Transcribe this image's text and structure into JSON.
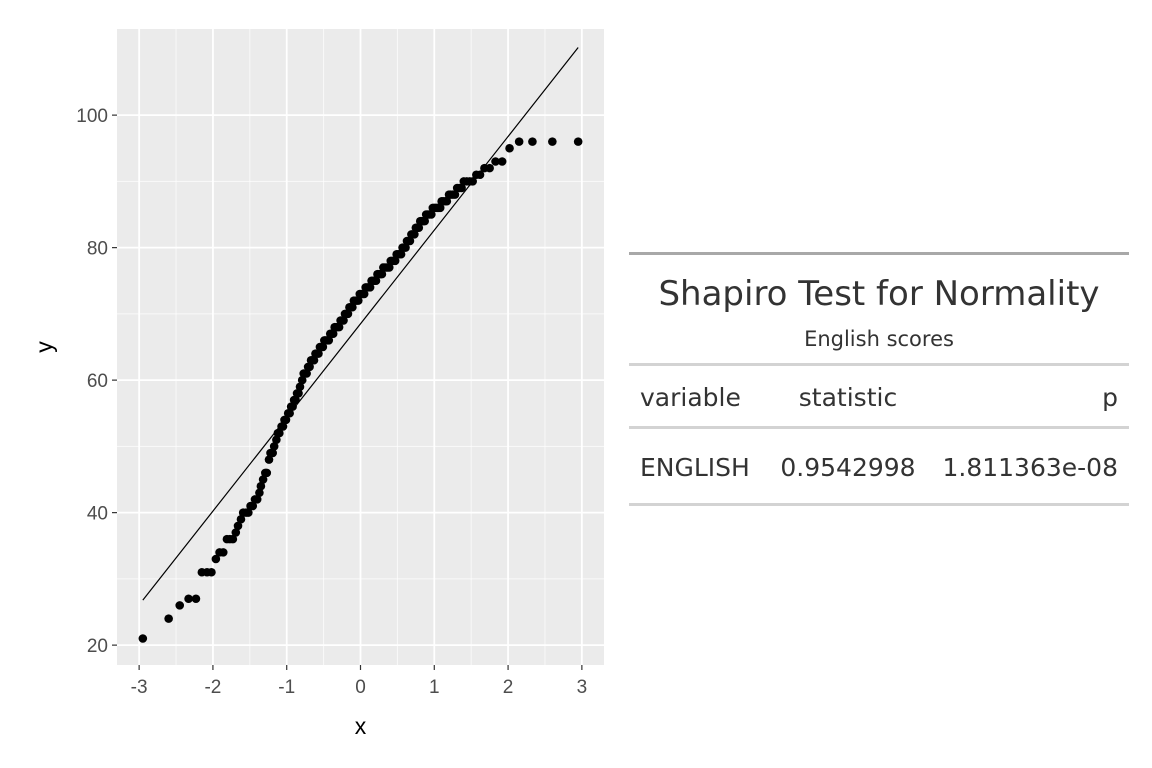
{
  "chart_data": [
    {
      "type": "scatter",
      "title": "",
      "xlabel": "x",
      "ylabel": "y",
      "xlim": [
        -3.3,
        3.3
      ],
      "ylim": [
        17,
        113
      ],
      "xticks": [
        -3,
        -2,
        -1,
        0,
        1,
        2,
        3
      ],
      "yticks": [
        20,
        40,
        60,
        80,
        100
      ],
      "grid": true,
      "background": "#ebebeb",
      "grid_color": "#ffffff",
      "point_color": "#000000",
      "reference_line": {
        "from": [
          -2.95,
          26.8
        ],
        "to": [
          2.95,
          110.2
        ],
        "color": "#000000"
      },
      "points": [
        [
          -2.95,
          21
        ],
        [
          -2.6,
          24
        ],
        [
          -2.45,
          26
        ],
        [
          -2.33,
          27
        ],
        [
          -2.23,
          27
        ],
        [
          -2.15,
          31
        ],
        [
          -2.08,
          31
        ],
        [
          -2.02,
          31
        ],
        [
          -1.96,
          33
        ],
        [
          -1.91,
          34
        ],
        [
          -1.86,
          34
        ],
        [
          -1.81,
          36
        ],
        [
          -1.77,
          36
        ],
        [
          -1.73,
          36
        ],
        [
          -1.69,
          37
        ],
        [
          -1.66,
          38
        ],
        [
          -1.62,
          39
        ],
        [
          -1.59,
          40
        ],
        [
          -1.55,
          40
        ],
        [
          -1.52,
          40
        ],
        [
          -1.49,
          41
        ],
        [
          -1.46,
          41
        ],
        [
          -1.43,
          42
        ],
        [
          -1.4,
          42
        ],
        [
          -1.37,
          43
        ],
        [
          -1.35,
          44
        ],
        [
          -1.32,
          45
        ],
        [
          -1.29,
          46
        ],
        [
          -1.27,
          46
        ],
        [
          -1.24,
          48
        ],
        [
          -1.22,
          49
        ],
        [
          -1.19,
          49
        ],
        [
          -1.17,
          50
        ],
        [
          -1.14,
          51
        ],
        [
          -1.12,
          52
        ],
        [
          -1.1,
          52
        ],
        [
          -1.07,
          53
        ],
        [
          -1.05,
          53
        ],
        [
          -1.03,
          54
        ],
        [
          -1.01,
          54
        ],
        [
          -0.98,
          55
        ],
        [
          -0.96,
          55
        ],
        [
          -0.94,
          56
        ],
        [
          -0.92,
          56
        ],
        [
          -0.9,
          57
        ],
        [
          -0.88,
          57
        ],
        [
          -0.86,
          58
        ],
        [
          -0.84,
          58
        ],
        [
          -0.82,
          59
        ],
        [
          -0.79,
          60
        ],
        [
          -0.77,
          61
        ],
        [
          -0.75,
          61
        ],
        [
          -0.73,
          61
        ],
        [
          -0.71,
          62
        ],
        [
          -0.69,
          62
        ],
        [
          -0.67,
          63
        ],
        [
          -0.65,
          63
        ],
        [
          -0.63,
          63
        ],
        [
          -0.61,
          64
        ],
        [
          -0.59,
          64
        ],
        [
          -0.57,
          64
        ],
        [
          -0.55,
          65
        ],
        [
          -0.53,
          65
        ],
        [
          -0.51,
          65
        ],
        [
          -0.49,
          66
        ],
        [
          -0.47,
          66
        ],
        [
          -0.45,
          66
        ],
        [
          -0.43,
          66
        ],
        [
          -0.41,
          67
        ],
        [
          -0.39,
          67
        ],
        [
          -0.37,
          67
        ],
        [
          -0.35,
          68
        ],
        [
          -0.33,
          68
        ],
        [
          -0.31,
          68
        ],
        [
          -0.29,
          68
        ],
        [
          -0.27,
          69
        ],
        [
          -0.25,
          69
        ],
        [
          -0.23,
          69
        ],
        [
          -0.21,
          70
        ],
        [
          -0.19,
          70
        ],
        [
          -0.17,
          70
        ],
        [
          -0.15,
          71
        ],
        [
          -0.13,
          71
        ],
        [
          -0.11,
          71
        ],
        [
          -0.09,
          72
        ],
        [
          -0.07,
          72
        ],
        [
          -0.05,
          72
        ],
        [
          -0.03,
          72
        ],
        [
          -0.01,
          73
        ],
        [
          0.01,
          73
        ],
        [
          0.03,
          73
        ],
        [
          0.05,
          73
        ],
        [
          0.07,
          74
        ],
        [
          0.09,
          74
        ],
        [
          0.11,
          74
        ],
        [
          0.13,
          74
        ],
        [
          0.15,
          75
        ],
        [
          0.17,
          75
        ],
        [
          0.19,
          75
        ],
        [
          0.21,
          75
        ],
        [
          0.23,
          76
        ],
        [
          0.25,
          76
        ],
        [
          0.27,
          76
        ],
        [
          0.29,
          76
        ],
        [
          0.31,
          77
        ],
        [
          0.33,
          77
        ],
        [
          0.35,
          77
        ],
        [
          0.37,
          77
        ],
        [
          0.39,
          77
        ],
        [
          0.41,
          78
        ],
        [
          0.43,
          78
        ],
        [
          0.45,
          78
        ],
        [
          0.47,
          78
        ],
        [
          0.49,
          79
        ],
        [
          0.51,
          79
        ],
        [
          0.53,
          79
        ],
        [
          0.55,
          79
        ],
        [
          0.57,
          80
        ],
        [
          0.59,
          80
        ],
        [
          0.61,
          80
        ],
        [
          0.63,
          81
        ],
        [
          0.65,
          81
        ],
        [
          0.67,
          81
        ],
        [
          0.69,
          82
        ],
        [
          0.71,
          82
        ],
        [
          0.73,
          82
        ],
        [
          0.75,
          83
        ],
        [
          0.77,
          83
        ],
        [
          0.79,
          83
        ],
        [
          0.81,
          84
        ],
        [
          0.83,
          84
        ],
        [
          0.85,
          84
        ],
        [
          0.87,
          84
        ],
        [
          0.89,
          85
        ],
        [
          0.91,
          85
        ],
        [
          0.93,
          85
        ],
        [
          0.96,
          85
        ],
        [
          0.98,
          86
        ],
        [
          1.0,
          86
        ],
        [
          1.02,
          86
        ],
        [
          1.04,
          86
        ],
        [
          1.06,
          86
        ],
        [
          1.08,
          86
        ],
        [
          1.1,
          87
        ],
        [
          1.12,
          87
        ],
        [
          1.15,
          87
        ],
        [
          1.17,
          87
        ],
        [
          1.2,
          88
        ],
        [
          1.22,
          88
        ],
        [
          1.25,
          88
        ],
        [
          1.28,
          88
        ],
        [
          1.31,
          89
        ],
        [
          1.34,
          89
        ],
        [
          1.37,
          89
        ],
        [
          1.4,
          90
        ],
        [
          1.44,
          90
        ],
        [
          1.48,
          90
        ],
        [
          1.52,
          90
        ],
        [
          1.57,
          91
        ],
        [
          1.62,
          91
        ],
        [
          1.68,
          92
        ],
        [
          1.75,
          92
        ],
        [
          1.83,
          93
        ],
        [
          1.92,
          93
        ],
        [
          2.02,
          95
        ],
        [
          2.15,
          96
        ],
        [
          2.33,
          96
        ],
        [
          2.6,
          96
        ],
        [
          2.95,
          96
        ]
      ]
    }
  ],
  "table": {
    "title": "Shapiro Test for Normality",
    "subtitle": "English scores",
    "columns": [
      "variable",
      "statistic",
      "p"
    ],
    "rows": [
      {
        "variable": "ENGLISH",
        "statistic": "0.9542998",
        "p": "1.811363e-08"
      }
    ]
  }
}
